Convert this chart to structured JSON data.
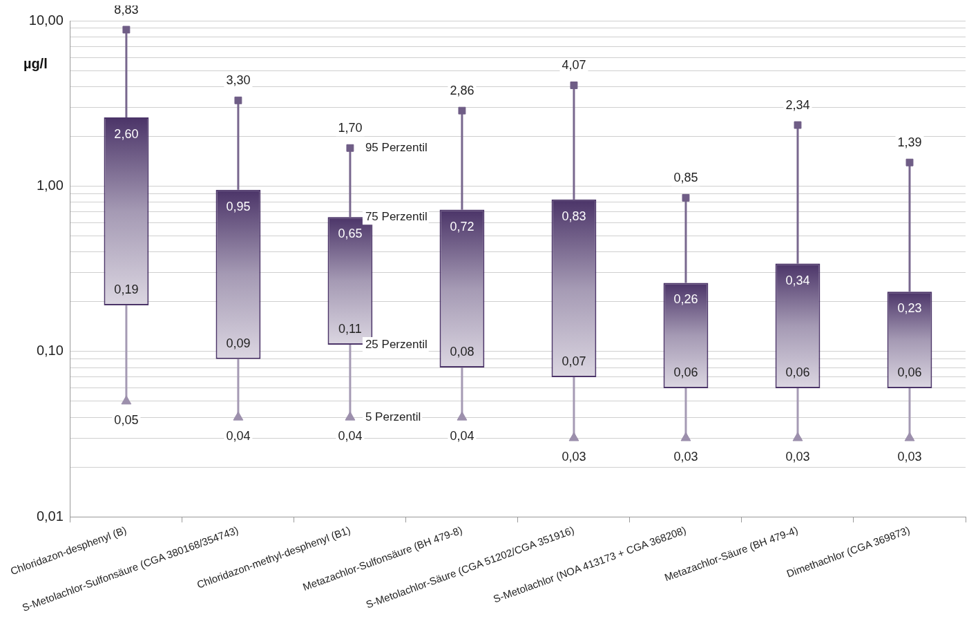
{
  "chart_data": {
    "type": "box",
    "ylabel": "µg/l",
    "log": "y",
    "grid": "y",
    "legend": false,
    "color": "#4b3468",
    "categories": [
      "Chloridazon-desphenyl (B)",
      "S-Metolachlor-Sulfonsäure (CGA 380168/354743)",
      "Chloridazon-methyl-desphenyl (B1)",
      "Metazachlor-Sulfonsäure (BH 479-8)",
      "S-Metolachlor-Säure (CGA 51202/CGA 351916)",
      "S-Metolachlor (NOA 413173 + CGA 368208)",
      "Metazachlor-Säure (BH 479-4)",
      "Dimethachlor (CGA 369873)"
    ],
    "boxes": [
      {
        "low": 0.05,
        "q1": 0.19,
        "q3": 2.6,
        "high": 8.83
      },
      {
        "low": 0.04,
        "q1": 0.09,
        "q3": 0.95,
        "high": 3.3
      },
      {
        "low": 0.04,
        "q1": 0.11,
        "q3": 0.65,
        "high": 1.7
      },
      {
        "low": 0.04,
        "q1": 0.08,
        "q3": 0.72,
        "high": 2.86
      },
      {
        "low": 0.03,
        "q1": 0.07,
        "q3": 0.83,
        "high": 4.07
      },
      {
        "low": 0.03,
        "q1": 0.06,
        "q3": 0.26,
        "high": 0.85
      },
      {
        "low": 0.03,
        "q1": 0.06,
        "q3": 0.34,
        "high": 2.34
      },
      {
        "low": 0.03,
        "q1": 0.06,
        "q3": 0.23,
        "high": 1.39
      }
    ],
    "value_labels": [
      [
        "0,05",
        "0,19",
        "2,60",
        "8,83"
      ],
      [
        "0,04",
        "0,09",
        "0,95",
        "3,30"
      ],
      [
        "0,04",
        "0,11",
        "0,65",
        "1,70"
      ],
      [
        "0,04",
        "0,08",
        "0,72",
        "2,86"
      ],
      [
        "0,03",
        "0,07",
        "0,83",
        "4,07"
      ],
      [
        "0,03",
        "0,06",
        "0,26",
        "0,85"
      ],
      [
        "0,03",
        "0,06",
        "0,34",
        "2,34"
      ],
      [
        "0,03",
        "0,06",
        "0,23",
        "1,39"
      ]
    ],
    "series": [
      {
        "type": "scatter",
        "marker": "square",
        "color": "#6f5d86",
        "x": [
          "Chloridazon-desphenyl (B)",
          "S-Metolachlor-Sulfonsäure (CGA 380168/354743)",
          "Chloridazon-methyl-desphenyl (B1)",
          "Metazachlor-Sulfonsäure (BH 479-8)",
          "S-Metolachlor-Säure (CGA 51202/CGA 351916)",
          "S-Metolachlor (NOA 413173 + CGA 368208)",
          "Metazachlor-Säure (BH 479-4)",
          "Dimethachlor (CGA 369873)"
        ],
        "values": [
          8.83,
          3.3,
          1.7,
          2.86,
          4.07,
          0.85,
          2.34,
          1.39
        ]
      },
      {
        "type": "scatter",
        "marker": "triangle",
        "color": "#9c8fac",
        "x": [
          "Chloridazon-desphenyl (B)",
          "S-Metolachlor-Sulfonsäure (CGA 380168/354743)",
          "Chloridazon-methyl-desphenyl (B1)",
          "Metazachlor-Sulfonsäure (BH 479-8)",
          "S-Metolachlor-Säure (CGA 51202/CGA 351916)",
          "S-Metolachlor (NOA 413173 + CGA 368208)",
          "Metazachlor-Säure (BH 479-4)",
          "Dimethachlor (CGA 369873)"
        ],
        "values": [
          0.05,
          0.04,
          0.04,
          0.04,
          0.03,
          0.03,
          0.03,
          0.03
        ]
      }
    ],
    "ylim": [
      0.01,
      10
    ],
    "yticks": [
      {
        "value": 0.01,
        "label": "0,01"
      },
      {
        "value": 0.02,
        "label": null
      },
      {
        "value": 0.03,
        "label": null
      },
      {
        "value": 0.04,
        "label": null
      },
      {
        "value": 0.05,
        "label": null
      },
      {
        "value": 0.06,
        "label": null
      },
      {
        "value": 0.07,
        "label": null
      },
      {
        "value": 0.08,
        "label": null
      },
      {
        "value": 0.09,
        "label": null
      },
      {
        "value": 0.1,
        "label": "0,10"
      },
      {
        "value": 0.2,
        "label": null
      },
      {
        "value": 0.3,
        "label": null
      },
      {
        "value": 0.4,
        "label": null
      },
      {
        "value": 0.5,
        "label": null
      },
      {
        "value": 0.6,
        "label": null
      },
      {
        "value": 0.7,
        "label": null
      },
      {
        "value": 0.8,
        "label": null
      },
      {
        "value": 0.9,
        "label": null
      },
      {
        "value": 1,
        "label": "1,00"
      },
      {
        "value": 2,
        "label": null
      },
      {
        "value": 3,
        "label": null
      },
      {
        "value": 4,
        "label": null
      },
      {
        "value": 5,
        "label": null
      },
      {
        "value": 6,
        "label": null
      },
      {
        "value": 7,
        "label": null
      },
      {
        "value": 8,
        "label": null
      },
      {
        "value": 9,
        "label": null
      },
      {
        "value": 10,
        "label": "10,00"
      }
    ],
    "annotations": [
      {
        "text": "95 Perzentil",
        "x": "Chloridazon-methyl-desphenyl (B1)",
        "y": 1.7
      },
      {
        "text": "75 Perzentil",
        "x": "Chloridazon-methyl-desphenyl (B1)",
        "y": 0.65
      },
      {
        "text": "25 Perzentil",
        "x": "Chloridazon-methyl-desphenyl (B1)",
        "y": 0.11
      },
      {
        "text": "5 Perzentil",
        "x": "Chloridazon-methyl-desphenyl (B1)",
        "y": 0.04
      }
    ]
  }
}
